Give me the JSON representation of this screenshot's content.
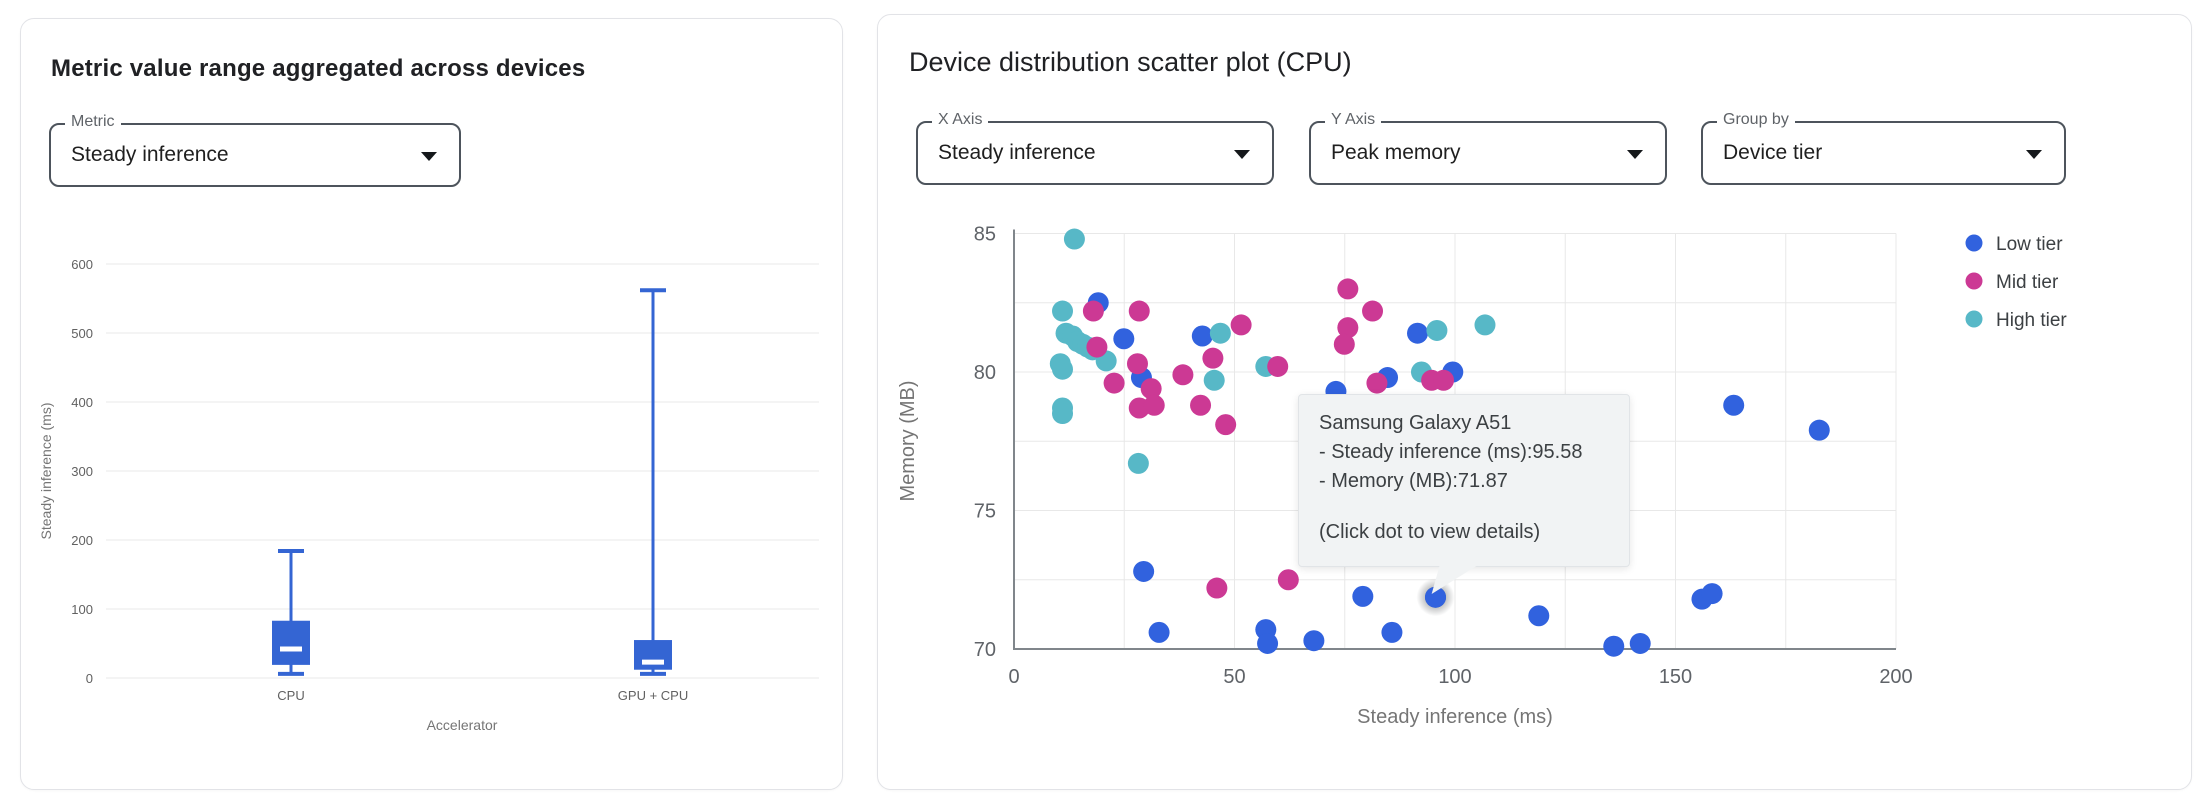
{
  "left_panel": {
    "title": "Metric value range aggregated across devices",
    "metric_select": {
      "label": "Metric",
      "value": "Steady inference"
    }
  },
  "right_panel": {
    "title": "Device distribution scatter plot (CPU)",
    "selects": [
      {
        "label": "X Axis",
        "value": "Steady inference"
      },
      {
        "label": "Y Axis",
        "value": "Peak memory"
      },
      {
        "label": "Group by",
        "value": "Device tier"
      }
    ],
    "tooltip": {
      "device": "Samsung Galaxy A51",
      "metric_line": "- Steady inference (ms):95.58",
      "memory_line": "- Memory (MB):71.87",
      "hint": "(Click dot to view details)"
    }
  },
  "colors": {
    "low_tier": "#3162DE",
    "mid_tier": "#CC3994",
    "high_tier": "#57B8C7",
    "box": "#3465D3",
    "grid": "#e8e8e8",
    "axis": "#80868b",
    "tick_label": "#616161",
    "axis_title": "#757575",
    "tooltip_bg": "#f1f3f4"
  },
  "chart_data": [
    {
      "type": "box",
      "title": "Metric value range aggregated across devices",
      "xlabel": "Accelerator",
      "ylabel": "Steady inference (ms)",
      "ylim": [
        0,
        600
      ],
      "yticks": [
        0,
        100,
        200,
        300,
        400,
        500,
        600
      ],
      "grid": true,
      "categories": [
        "CPU",
        "GPU + CPU"
      ],
      "series": [
        {
          "category": "CPU",
          "min": 6,
          "q1": 19,
          "median": 42,
          "q3": 83,
          "max": 184
        },
        {
          "category": "GPU + CPU",
          "min": 6,
          "q1": 12,
          "median": 23,
          "q3": 55,
          "max": 562
        }
      ]
    },
    {
      "type": "scatter",
      "title": "Device distribution scatter plot (CPU)",
      "xlabel": "Steady inference (ms)",
      "ylabel": "Memory (MB)",
      "xlim": [
        0,
        200
      ],
      "ylim": [
        70,
        85
      ],
      "xticks": [
        0,
        50,
        100,
        150,
        200
      ],
      "yticks": [
        70,
        75,
        80,
        85
      ],
      "x_minor_step": 25,
      "y_minor_step": 2.5,
      "grid": true,
      "legend_position": "right",
      "draw_order": [
        0,
        2,
        1
      ],
      "series": [
        {
          "name": "Low tier",
          "color": "#3162DE",
          "points": [
            [
              19.1,
              82.5
            ],
            [
              24.9,
              81.2
            ],
            [
              28.9,
              79.8
            ],
            [
              42.7,
              81.3
            ],
            [
              73,
              79.3
            ],
            [
              84.7,
              79.8
            ],
            [
              91.5,
              81.4
            ],
            [
              99.5,
              80
            ],
            [
              29.4,
              72.8
            ],
            [
              32.9,
              70.6
            ],
            [
              57.1,
              70.7
            ],
            [
              57.5,
              70.2
            ],
            [
              68,
              70.3
            ],
            [
              79.1,
              71.9
            ],
            [
              85.7,
              70.6
            ],
            [
              95.58,
              71.87
            ],
            [
              119,
              71.2
            ],
            [
              136,
              70.1
            ],
            [
              142,
              70.2
            ],
            [
              156,
              71.8
            ],
            [
              158.3,
              72
            ],
            [
              163.2,
              78.8
            ],
            [
              182.6,
              77.9
            ]
          ]
        },
        {
          "name": "Mid tier",
          "color": "#CC3994",
          "points": [
            [
              18,
              82.2
            ],
            [
              28.4,
              82.2
            ],
            [
              18.8,
              80.9
            ],
            [
              22.7,
              79.6
            ],
            [
              28,
              80.3
            ],
            [
              31.1,
              79.4
            ],
            [
              28.4,
              78.7
            ],
            [
              31.8,
              78.8
            ],
            [
              38.3,
              79.9
            ],
            [
              42.3,
              78.8
            ],
            [
              48,
              78.1
            ],
            [
              45.1,
              80.5
            ],
            [
              51.5,
              81.7
            ],
            [
              59.8,
              80.2
            ],
            [
              75.7,
              83
            ],
            [
              75.7,
              81.6
            ],
            [
              74.9,
              81
            ],
            [
              81.3,
              82.2
            ],
            [
              82.3,
              79.6
            ],
            [
              94.7,
              79.7
            ],
            [
              97.4,
              79.7
            ],
            [
              46,
              72.2
            ],
            [
              62.2,
              72.5
            ]
          ]
        },
        {
          "name": "High tier",
          "color": "#57B8C7",
          "points": [
            [
              13.7,
              84.8
            ],
            [
              11,
              82.2
            ],
            [
              11.8,
              81.4
            ],
            [
              13.3,
              81.3
            ],
            [
              14.4,
              81.1
            ],
            [
              15.6,
              81
            ],
            [
              16.7,
              80.9
            ],
            [
              17.8,
              80.8
            ],
            [
              20.9,
              80.4
            ],
            [
              10.5,
              80.3
            ],
            [
              11,
              80.1
            ],
            [
              11,
              78.7
            ],
            [
              11,
              78.5
            ],
            [
              46.8,
              81.4
            ],
            [
              45.4,
              79.7
            ],
            [
              57.1,
              80.2
            ],
            [
              28.2,
              76.7
            ],
            [
              92.4,
              80
            ],
            [
              95.9,
              81.5
            ],
            [
              106.8,
              81.7
            ]
          ]
        }
      ],
      "highlighted_point": {
        "series": "Low tier",
        "x": 95.58,
        "y": 71.87
      }
    }
  ]
}
